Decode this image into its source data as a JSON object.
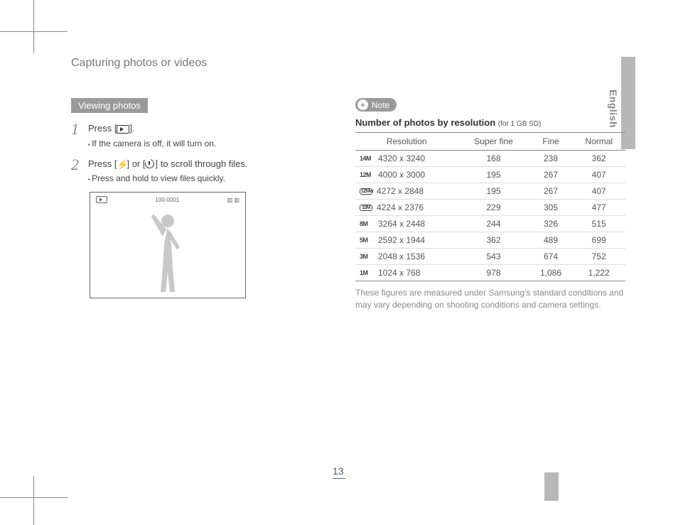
{
  "lang_tab": "English",
  "page_number": "13",
  "header": "Capturing photos or videos",
  "left": {
    "section_label": "Viewing photos",
    "step1": {
      "text_before": "Press [",
      "text_after": "].",
      "bullet": "If the camera is off, it will turn on."
    },
    "step2": {
      "text_before": "Press [",
      "text_mid": "] or [",
      "text_after": "] to scroll through files.",
      "bullet": "Press and hold to view files quickly."
    },
    "preview": {
      "counter": "100-0001",
      "battery": "▥ ▥"
    }
  },
  "right": {
    "note_label": "Note",
    "table_title": "Number of photos by resolution",
    "table_sub": "(for 1 GB SD)",
    "columns": [
      "Resolution",
      "Super fine",
      "Fine",
      "Normal"
    ],
    "rows": [
      {
        "icon": "14M",
        "icon_style": "plain",
        "res": "4320 x 3240",
        "sf": "168",
        "f": "238",
        "n": "362"
      },
      {
        "icon": "12M",
        "icon_style": "plain",
        "res": "4000 x 3000",
        "sf": "195",
        "f": "267",
        "n": "407"
      },
      {
        "icon": "12Mw",
        "icon_style": "box",
        "res": "4272 x 2848",
        "sf": "195",
        "f": "267",
        "n": "407"
      },
      {
        "icon": "10M",
        "icon_style": "box",
        "res": "4224 x 2376",
        "sf": "229",
        "f": "305",
        "n": "477"
      },
      {
        "icon": "8M",
        "icon_style": "plain",
        "res": "3264 x 2448",
        "sf": "244",
        "f": "326",
        "n": "515"
      },
      {
        "icon": "5M",
        "icon_style": "plain",
        "res": "2592 x 1944",
        "sf": "362",
        "f": "489",
        "n": "699"
      },
      {
        "icon": "3M",
        "icon_style": "plain",
        "res": "2048 x 1536",
        "sf": "543",
        "f": "674",
        "n": "752"
      },
      {
        "icon": "1M",
        "icon_style": "plain",
        "res": "1024 x 768",
        "sf": "978",
        "f": "1,086",
        "n": "1,222"
      }
    ],
    "footnote": "These figures are measured under Samsung's standard conditions and may vary depending on shooting conditions and camera settings."
  }
}
